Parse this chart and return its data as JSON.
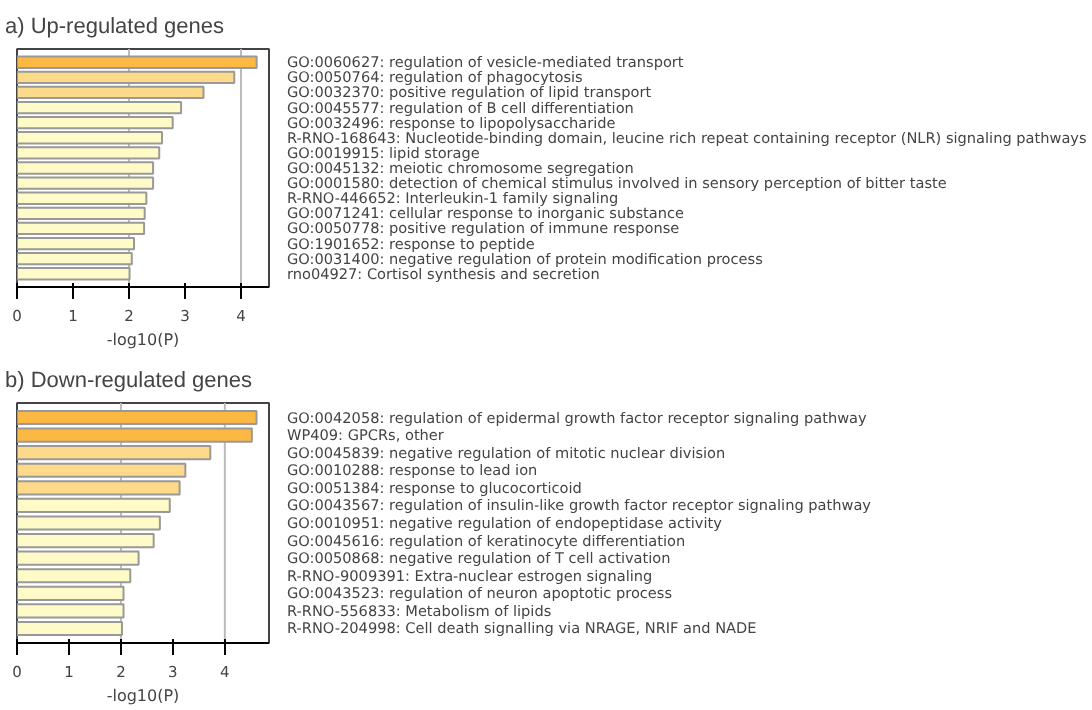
{
  "chart_data": [
    {
      "type": "bar",
      "orientation": "horizontal",
      "title": "a) Up-regulated genes",
      "xlabel": "-log10(P)",
      "categories": [
        "GO:0060627: regulation of vesicle-mediated transport",
        "GO:0050764: regulation of phagocytosis",
        "GO:0032370: positive regulation of lipid transport",
        "GO:0045577: regulation of B cell differentiation",
        "GO:0032496: response to lipopolysaccharide",
        "R-RNO-168643: Nucleotide-binding domain, leucine rich repeat containing receptor (NLR) signaling pathways",
        "GO:0019915: lipid storage",
        "GO:0045132: meiotic chromosome segregation",
        "GO:0001580: detection of chemical stimulus involved in sensory perception of bitter taste",
        "R-RNO-446652: Interleukin-1 family signaling",
        "GO:0071241: cellular response to inorganic substance",
        "GO:0050778: positive regulation of immune response",
        "GO:1901652: response to peptide",
        "GO:0031400: negative regulation of protein modification process",
        "rno04927: Cortisol synthesis and secretion"
      ],
      "values": [
        4.28,
        3.88,
        3.33,
        2.93,
        2.78,
        2.59,
        2.54,
        2.43,
        2.43,
        2.31,
        2.28,
        2.27,
        2.09,
        2.05,
        2.01
      ],
      "colors": [
        "#fbb843",
        "#fdd98a",
        "#fdd98a",
        "#fffbc8",
        "#fffbc8",
        "#fffbc8",
        "#fffbc8",
        "#fffbc8",
        "#fffbc8",
        "#fffbc8",
        "#fffbc8",
        "#fffbc8",
        "#fffbc8",
        "#fffbc8",
        "#fffbc8"
      ],
      "xlim": [
        0,
        4.5
      ],
      "xticks": [
        0,
        1,
        2,
        3,
        4
      ],
      "ref_lines": [
        {
          "axis": "x",
          "value": 2,
          "color": "#bbbbbb"
        },
        {
          "axis": "x",
          "value": 4,
          "color": "#bbbbbb"
        }
      ]
    },
    {
      "type": "bar",
      "orientation": "horizontal",
      "title": "b) Down-regulated genes",
      "xlabel": "-log10(P)",
      "categories": [
        "GO:0042058: regulation of epidermal growth factor receptor signaling pathway",
        "WP409: GPCRs, other",
        "GO:0045839: negative regulation of mitotic nuclear division",
        "GO:0010288: response to lead ion",
        "GO:0051384: response to glucocorticoid",
        "GO:0043567: regulation of insulin-like growth factor receptor signaling pathway",
        "GO:0010951: negative regulation of endopeptidase activity",
        "GO:0045616: regulation of keratinocyte differentiation",
        "GO:0050868: negative regulation of T cell activation",
        "R-RNO-9009391: Extra-nuclear estrogen signaling",
        "GO:0043523: regulation of neuron apoptotic process",
        "R-RNO-556833: Metabolism of lipids",
        "R-RNO-204998: Cell death signalling via NRAGE, NRIF and NADE"
      ],
      "values": [
        4.61,
        4.52,
        3.72,
        3.24,
        3.13,
        2.94,
        2.75,
        2.63,
        2.34,
        2.18,
        2.05,
        2.05,
        2.02
      ],
      "colors": [
        "#fbb843",
        "#fbb843",
        "#fdd98a",
        "#fdd98a",
        "#fdd98a",
        "#fffbc8",
        "#fffbc8",
        "#fffbc8",
        "#fffbc8",
        "#fffbc8",
        "#fffbc8",
        "#fffbc8",
        "#fffbc8"
      ],
      "xlim": [
        0,
        4.85
      ],
      "xticks": [
        0,
        1,
        2,
        3,
        4
      ],
      "ref_lines": [
        {
          "axis": "x",
          "value": 2,
          "color": "#bbbbbb"
        },
        {
          "axis": "x",
          "value": 4,
          "color": "#bbbbbb"
        }
      ]
    }
  ]
}
